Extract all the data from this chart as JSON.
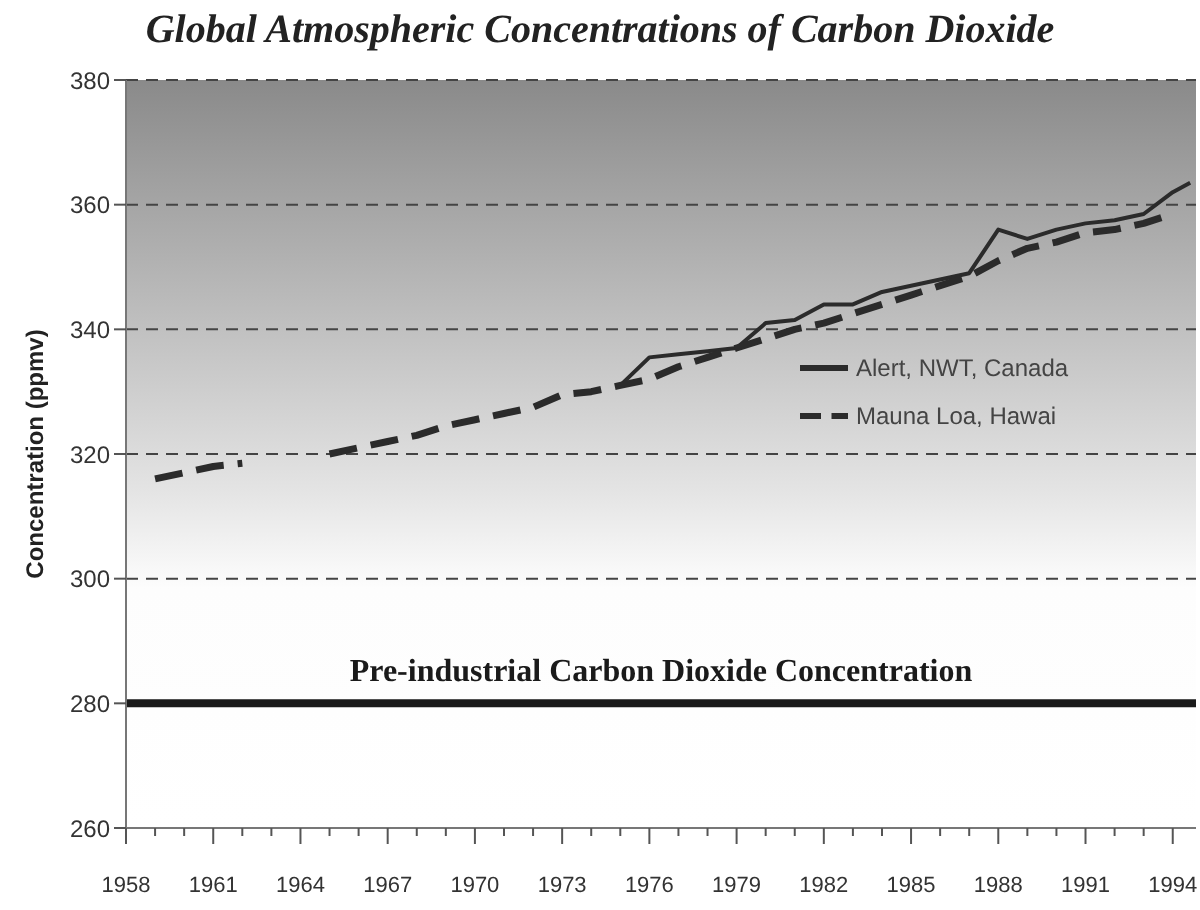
{
  "chart_data": {
    "type": "line",
    "title": "Global Atmospheric Concentrations of Carbon Dioxide",
    "ylabel": "Concentration (ppmv)",
    "xlim": [
      1958,
      1994.8
    ],
    "ylim": [
      260,
      380
    ],
    "yticks": [
      260,
      280,
      300,
      320,
      340,
      360,
      380
    ],
    "xticks": [
      1958,
      {
        "value": 1959,
        "label": null
      },
      {
        "value": 1960,
        "label": null
      },
      1961,
      {
        "value": 1962,
        "label": null
      },
      {
        "value": 1963,
        "label": null
      },
      1964,
      {
        "value": 1965,
        "label": null
      },
      {
        "value": 1966,
        "label": null
      },
      1967,
      {
        "value": 1968,
        "label": null
      },
      {
        "value": 1969,
        "label": null
      },
      1970,
      {
        "value": 1971,
        "label": null
      },
      {
        "value": 1972,
        "label": null
      },
      1973,
      {
        "value": 1974,
        "label": null
      },
      {
        "value": 1975,
        "label": null
      },
      1976,
      {
        "value": 1977,
        "label": null
      },
      {
        "value": 1978,
        "label": null
      },
      1979,
      {
        "value": 1980,
        "label": null
      },
      {
        "value": 1981,
        "label": null
      },
      1982,
      {
        "value": 1983,
        "label": null
      },
      {
        "value": 1984,
        "label": null
      },
      1985,
      {
        "value": 1986,
        "label": null
      },
      {
        "value": 1987,
        "label": null
      },
      1988,
      {
        "value": 1989,
        "label": null
      },
      {
        "value": 1990,
        "label": null
      },
      1991,
      {
        "value": 1992,
        "label": null
      },
      {
        "value": 1993,
        "label": null
      },
      1994
    ],
    "grid": "y",
    "legend": "right",
    "series": [
      {
        "name": "Alert, NWT, Canada",
        "color": "#2b2b2b",
        "line_style": "solid",
        "x": [
          1975,
          1976,
          1977,
          1978,
          1979,
          1980,
          1981,
          1982,
          1983,
          1984,
          1985,
          1986,
          1987,
          1988,
          1989,
          1990,
          1991,
          1992,
          1993,
          1994,
          1994.6
        ],
        "values": [
          331,
          335.5,
          336,
          336.5,
          337,
          341,
          341.5,
          344,
          344,
          346,
          347,
          348,
          349,
          356,
          354.5,
          356,
          357,
          357.5,
          358.5,
          362,
          363.5
        ]
      },
      {
        "name": "Mauna Loa, Hawai",
        "color": "#2b2b2b",
        "line_style": "dashed",
        "x": [
          1959,
          1960,
          1961,
          1962,
          1963,
          1964,
          1965,
          1966,
          1967,
          1968,
          1969,
          1970,
          1971,
          1972,
          1973,
          1974,
          1975,
          1976,
          1977,
          1978,
          1979,
          1980,
          1981,
          1982,
          1983,
          1984,
          1985,
          1986,
          1987,
          1988,
          1989,
          1990,
          1991,
          1992,
          1993,
          1994
        ],
        "values": [
          316,
          317,
          318,
          318.5,
          null,
          null,
          320,
          321,
          322,
          323,
          324.5,
          325.5,
          326.5,
          327.5,
          329.5,
          330,
          331,
          332,
          334,
          335.5,
          337,
          338.5,
          340,
          341,
          342.5,
          344,
          345.5,
          347,
          348.5,
          351,
          353,
          354,
          355.5,
          356,
          357,
          358.5
        ]
      }
    ],
    "ref_lines": [
      {
        "axis": "y",
        "value": 280,
        "label": "Pre-industrial Carbon Dioxide Concentration",
        "color": "#1a1a1a"
      }
    ]
  }
}
